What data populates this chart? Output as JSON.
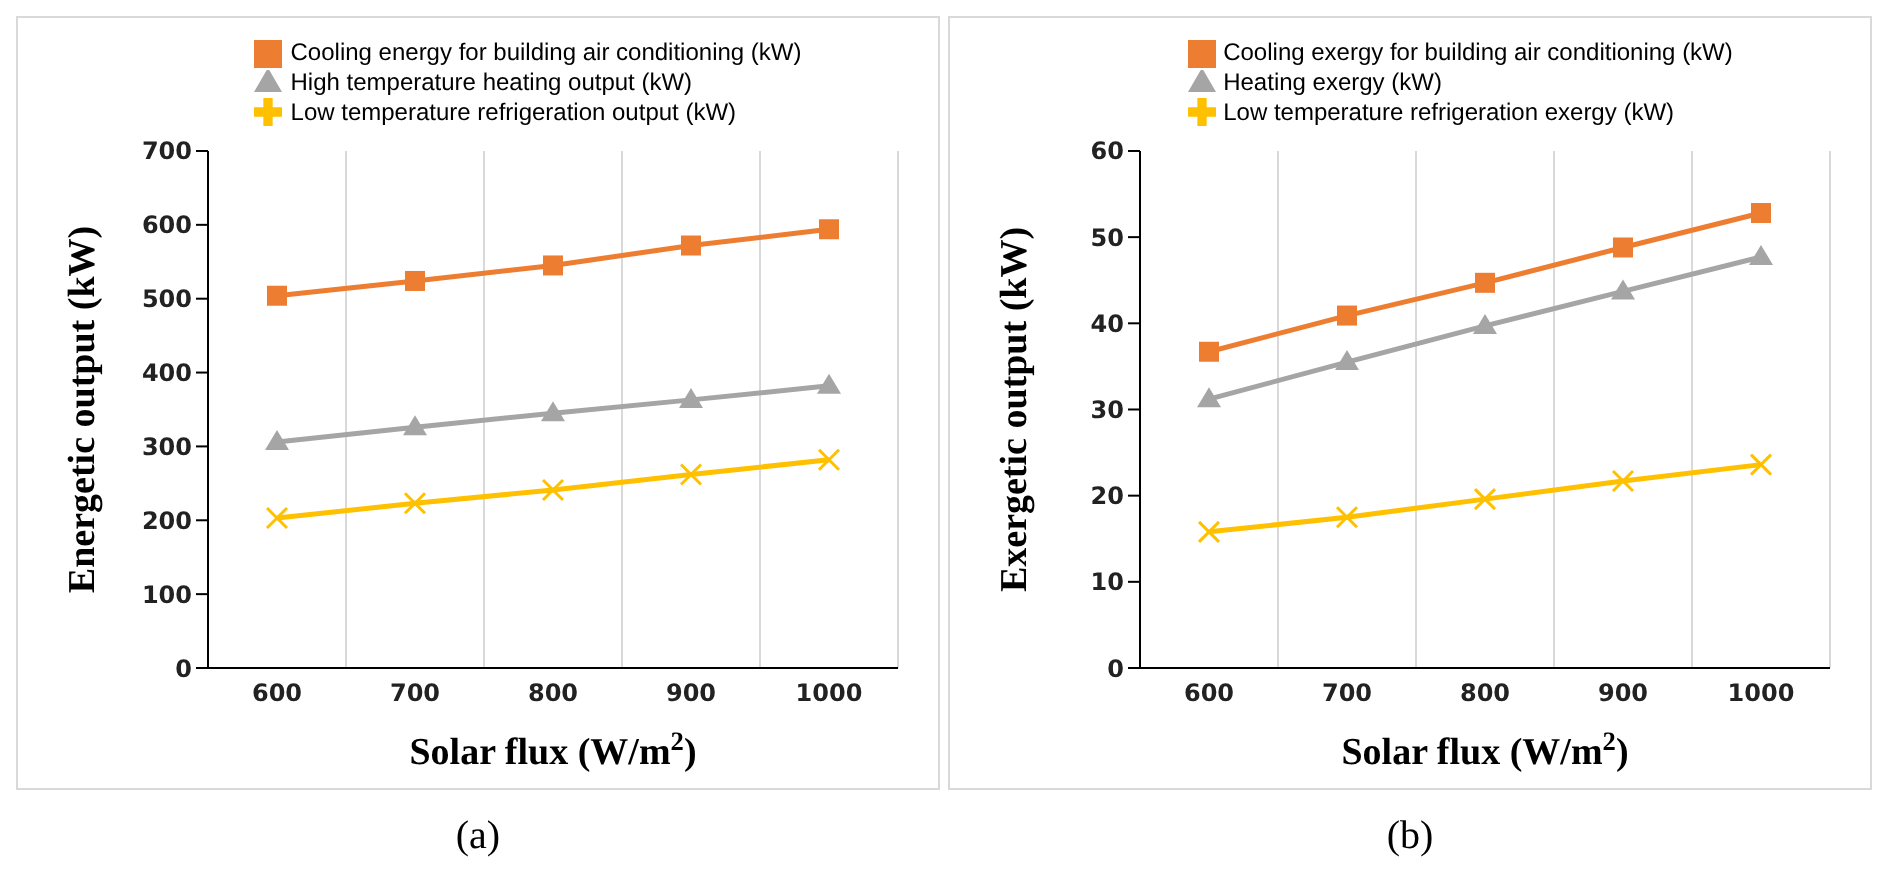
{
  "chart_data": [
    {
      "type": "line",
      "xlabel": "Solar flux (W/m$^{2}$)",
      "ylabel": "Energetic output (kW)",
      "x": [
        600,
        700,
        800,
        900,
        1000
      ],
      "xlim": [
        550,
        1050
      ],
      "xticks": [
        600,
        {
          "value": 650,
          "label": null
        },
        700,
        {
          "value": 750,
          "label": null
        },
        800,
        {
          "value": 850,
          "label": null
        },
        900,
        {
          "value": 950,
          "label": null
        },
        1000,
        {
          "value": 1050,
          "label": null
        }
      ],
      "ylim": [
        0,
        700
      ],
      "yticks": [
        0,
        100,
        200,
        300,
        400,
        500,
        600,
        700
      ],
      "grid": "x",
      "legend": "top",
      "annotations": [
        "(a)"
      ],
      "series": [
        {
          "name": "Cooling energy for building air conditioning (kW)",
          "color": "#ed7d31",
          "marker": "square",
          "values": [
            504,
            524,
            545,
            572,
            594
          ]
        },
        {
          "name": "High temperature heating output (kW)",
          "color": "#a5a5a5",
          "marker": "triangle",
          "values": [
            306,
            326,
            345,
            363,
            382
          ]
        },
        {
          "name": "Low temperature refrigeration output (kW)",
          "color": "#ffc000",
          "marker": "cross",
          "values": [
            203,
            223,
            241,
            262,
            282
          ]
        }
      ]
    },
    {
      "type": "line",
      "xlabel": "Solar flux (W/m$^{2}$)",
      "ylabel": "Exergetic output (kW)",
      "x": [
        600,
        700,
        800,
        900,
        1000
      ],
      "xlim": [
        550,
        1050
      ],
      "xticks": [
        600,
        {
          "value": 650,
          "label": null
        },
        700,
        {
          "value": 750,
          "label": null
        },
        800,
        {
          "value": 850,
          "label": null
        },
        900,
        {
          "value": 950,
          "label": null
        },
        1000,
        {
          "value": 1050,
          "label": null
        }
      ],
      "ylim": [
        0,
        60
      ],
      "yticks": [
        0,
        10,
        20,
        30,
        40,
        50,
        60
      ],
      "grid": "x",
      "legend": "top",
      "annotations": [
        "(b)"
      ],
      "series": [
        {
          "name": "Cooling exergy for building air conditioning (kW)",
          "color": "#ed7d31",
          "marker": "square",
          "values": [
            36.7,
            40.9,
            44.7,
            48.8,
            52.8
          ]
        },
        {
          "name": "Heating exergy (kW)",
          "color": "#a5a5a5",
          "marker": "triangle",
          "values": [
            31.2,
            35.5,
            39.7,
            43.7,
            47.7
          ]
        },
        {
          "name": "Low temperature refrigeration exergy (kW)",
          "color": "#ffc000",
          "marker": "cross",
          "values": [
            15.8,
            17.5,
            19.6,
            21.7,
            23.6
          ]
        }
      ]
    }
  ]
}
